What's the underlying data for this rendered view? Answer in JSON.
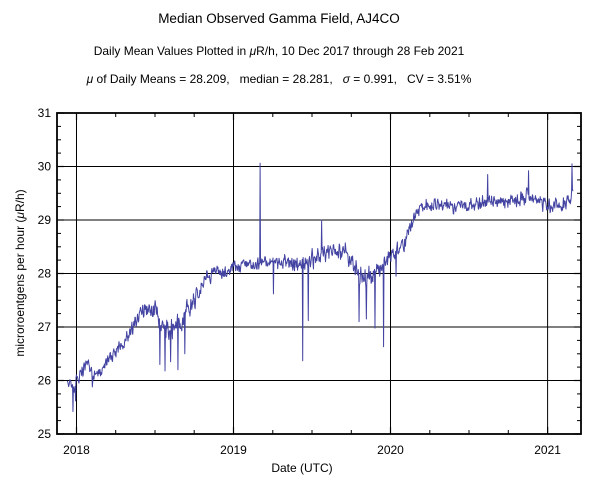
{
  "header": {
    "title": "Median Observed Gamma Field, AJ4CO",
    "subtitle_segments": [
      {
        "t": "Daily Mean Values Plotted in "
      },
      {
        "t": "μ",
        "i": true
      },
      {
        "t": "R/h, 10 Dec 2017 through 28 Feb 2021"
      }
    ],
    "stats_segments": [
      {
        "t": "μ",
        "i": true
      },
      {
        "t": " of Daily Means = 28.209,   median = 28.281,   "
      },
      {
        "t": "σ",
        "i": true
      },
      {
        "t": " = 0.991,   CV = 3.51%"
      }
    ]
  },
  "chart_data": {
    "type": "line",
    "title": "Median Observed Gamma Field, AJ4CO",
    "subtitle": "Daily Mean Values Plotted in μR/h, 10 Dec 2017 through 28 Feb 2021",
    "xlabel": "Date (UTC)",
    "ylabel": "microroentgens per hour (μR/h)",
    "ylabel_segments": [
      {
        "t": "microroentgens per hour ("
      },
      {
        "t": "μ",
        "i": true
      },
      {
        "t": "R/h)"
      }
    ],
    "stats": {
      "mean_of_daily_means": 28.209,
      "median": 28.281,
      "sigma": 0.991,
      "cv_percent": 3.51
    },
    "line_color": "#4343a2",
    "grid": true,
    "x_range": [
      2017.876,
      2021.213
    ],
    "y_range": [
      25,
      31
    ],
    "x_major_ticks": [
      {
        "v": 2018,
        "label": "2018"
      },
      {
        "v": 2019,
        "label": "2019"
      },
      {
        "v": 2020,
        "label": "2020"
      },
      {
        "v": 2021,
        "label": "2021"
      }
    ],
    "y_tick_labels": [
      "25",
      "26",
      "27",
      "28",
      "29",
      "30",
      "31"
    ],
    "x_minor_interval": 0.25,
    "y_major_interval": 1,
    "y_minor_interval": 0.25,
    "series": {
      "name": "daily-mean-gamma",
      "start": 2017.942,
      "end": 2021.162,
      "samples_per_year": 365,
      "seed": 20210228,
      "trend_anchors": [
        [
          2017.942,
          26.0
        ],
        [
          2017.96,
          25.95
        ],
        [
          2017.985,
          25.8
        ],
        [
          2018.0,
          26.0
        ],
        [
          2018.04,
          26.2
        ],
        [
          2018.075,
          26.3
        ],
        [
          2018.105,
          26.05
        ],
        [
          2018.14,
          26.15
        ],
        [
          2018.18,
          26.3
        ],
        [
          2018.23,
          26.5
        ],
        [
          2018.29,
          26.65
        ],
        [
          2018.35,
          26.9
        ],
        [
          2018.4,
          27.25
        ],
        [
          2018.44,
          27.3
        ],
        [
          2018.5,
          27.35
        ],
        [
          2018.54,
          27.0
        ],
        [
          2018.58,
          26.9
        ],
        [
          2018.62,
          26.95
        ],
        [
          2018.66,
          27.05
        ],
        [
          2018.7,
          27.3
        ],
        [
          2018.76,
          27.6
        ],
        [
          2018.82,
          27.9
        ],
        [
          2018.88,
          28.05
        ],
        [
          2018.94,
          28.0
        ],
        [
          2019.0,
          28.1
        ],
        [
          2019.08,
          28.2
        ],
        [
          2019.16,
          28.15
        ],
        [
          2019.24,
          28.25
        ],
        [
          2019.32,
          28.2
        ],
        [
          2019.4,
          28.15
        ],
        [
          2019.46,
          28.2
        ],
        [
          2019.55,
          28.35
        ],
        [
          2019.64,
          28.45
        ],
        [
          2019.72,
          28.4
        ],
        [
          2019.78,
          28.05
        ],
        [
          2019.84,
          27.9
        ],
        [
          2019.9,
          28.05
        ],
        [
          2019.95,
          28.15
        ],
        [
          2020.0,
          28.35
        ],
        [
          2020.06,
          28.45
        ],
        [
          2020.11,
          28.7
        ],
        [
          2020.15,
          29.05
        ],
        [
          2020.19,
          29.25
        ],
        [
          2020.28,
          29.3
        ],
        [
          2020.4,
          29.25
        ],
        [
          2020.52,
          29.3
        ],
        [
          2020.64,
          29.35
        ],
        [
          2020.76,
          29.35
        ],
        [
          2020.88,
          29.45
        ],
        [
          2020.96,
          29.35
        ],
        [
          2021.04,
          29.25
        ],
        [
          2021.11,
          29.3
        ],
        [
          2021.15,
          29.45
        ],
        [
          2021.162,
          29.6
        ]
      ],
      "noise_segments": [
        [
          2017.942,
          0.14
        ],
        [
          2018.03,
          0.18
        ],
        [
          2018.35,
          0.24
        ],
        [
          2018.52,
          0.28
        ],
        [
          2018.78,
          0.2
        ],
        [
          2019.0,
          0.18
        ],
        [
          2019.3,
          0.22
        ],
        [
          2019.74,
          0.28
        ],
        [
          2019.97,
          0.2
        ],
        [
          2020.17,
          0.18
        ],
        [
          2020.9,
          0.2
        ],
        [
          2021.0,
          0.18
        ]
      ],
      "spikes": [
        [
          2017.978,
          25.42
        ],
        [
          2017.995,
          25.62
        ],
        [
          2018.1,
          25.88
        ],
        [
          2018.53,
          26.3
        ],
        [
          2018.565,
          26.18
        ],
        [
          2018.6,
          26.35
        ],
        [
          2018.645,
          26.2
        ],
        [
          2018.69,
          26.5
        ],
        [
          2019.17,
          30.06
        ],
        [
          2019.255,
          27.62
        ],
        [
          2019.44,
          26.37
        ],
        [
          2019.475,
          27.12
        ],
        [
          2019.56,
          29.0
        ],
        [
          2019.8,
          27.1
        ],
        [
          2019.845,
          27.15
        ],
        [
          2019.9,
          26.98
        ],
        [
          2019.955,
          26.63
        ],
        [
          2020.035,
          27.95
        ],
        [
          2020.62,
          29.85
        ],
        [
          2020.88,
          29.92
        ],
        [
          2021.155,
          30.05
        ]
      ]
    }
  }
}
